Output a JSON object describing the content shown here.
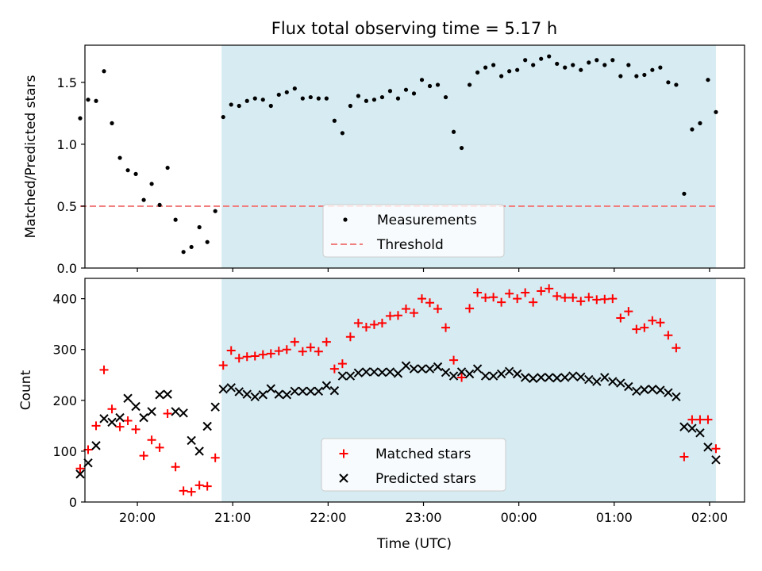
{
  "title": "Flux total observing time = 5.17 h",
  "xlabel": "Time (UTC)",
  "x_tick_labels": [
    "20:00",
    "21:00",
    "22:00",
    "23:00",
    "00:00",
    "01:00",
    "02:00"
  ],
  "colors": {
    "shade": "#add8e6",
    "threshold": "#f08080",
    "measurements": "#000000",
    "matched": "#ff0000",
    "predicted": "#000000"
  },
  "chart_data": [
    {
      "type": "scatter",
      "ylabel": "Matched/Predicted stars",
      "xlim": [
        "19:27",
        "02:22"
      ],
      "ylim": [
        0,
        1.8
      ],
      "y_ticks": [
        0.0,
        0.5,
        1.0,
        1.5
      ],
      "y_tick_labels": [
        "0.0",
        "0.5",
        "1.0",
        "1.5"
      ],
      "x_ticks": [
        "20:00",
        "21:00",
        "22:00",
        "23:00",
        "00:00",
        "01:00",
        "02:00"
      ],
      "shaded_interval": [
        "20:53",
        "02:04"
      ],
      "legend": {
        "placement": "lower-center",
        "entries": [
          "Measurements",
          "Threshold"
        ]
      },
      "threshold": {
        "name": "Threshold",
        "value": 0.5,
        "x_range": [
          "19:24",
          "02:04"
        ]
      },
      "series": [
        {
          "name": "Measurements",
          "points": [
            [
              "19:24",
              1.21
            ],
            [
              "19:29",
              1.36
            ],
            [
              "19:34",
              1.35
            ],
            [
              "19:39",
              1.59
            ],
            [
              "19:44",
              1.17
            ],
            [
              "19:49",
              0.89
            ],
            [
              "19:54",
              0.79
            ],
            [
              "19:59",
              0.76
            ],
            [
              "20:04",
              0.55
            ],
            [
              "20:09",
              0.68
            ],
            [
              "20:14",
              0.51
            ],
            [
              "20:19",
              0.81
            ],
            [
              "20:24",
              0.39
            ],
            [
              "20:29",
              0.13
            ],
            [
              "20:34",
              0.17
            ],
            [
              "20:39",
              0.33
            ],
            [
              "20:44",
              0.21
            ],
            [
              "20:49",
              0.46
            ],
            [
              "20:54",
              1.22
            ],
            [
              "20:59",
              1.32
            ],
            [
              "21:04",
              1.31
            ],
            [
              "21:09",
              1.35
            ],
            [
              "21:14",
              1.37
            ],
            [
              "21:19",
              1.36
            ],
            [
              "21:24",
              1.31
            ],
            [
              "21:29",
              1.4
            ],
            [
              "21:34",
              1.42
            ],
            [
              "21:39",
              1.45
            ],
            [
              "21:44",
              1.37
            ],
            [
              "21:49",
              1.38
            ],
            [
              "21:54",
              1.37
            ],
            [
              "21:59",
              1.37
            ],
            [
              "22:04",
              1.19
            ],
            [
              "22:09",
              1.09
            ],
            [
              "22:14",
              1.31
            ],
            [
              "22:19",
              1.39
            ],
            [
              "22:24",
              1.35
            ],
            [
              "22:29",
              1.36
            ],
            [
              "22:34",
              1.38
            ],
            [
              "22:39",
              1.43
            ],
            [
              "22:44",
              1.37
            ],
            [
              "22:49",
              1.44
            ],
            [
              "22:54",
              1.41
            ],
            [
              "22:59",
              1.52
            ],
            [
              "23:04",
              1.47
            ],
            [
              "23:09",
              1.48
            ],
            [
              "23:14",
              1.38
            ],
            [
              "23:19",
              1.1
            ],
            [
              "23:24",
              0.97
            ],
            [
              "23:29",
              1.48
            ],
            [
              "23:34",
              1.58
            ],
            [
              "23:39",
              1.62
            ],
            [
              "23:44",
              1.64
            ],
            [
              "23:49",
              1.55
            ],
            [
              "23:54",
              1.59
            ],
            [
              "23:59",
              1.6
            ],
            [
              "00:04",
              1.68
            ],
            [
              "00:09",
              1.64
            ],
            [
              "00:14",
              1.69
            ],
            [
              "00:19",
              1.71
            ],
            [
              "00:24",
              1.65
            ],
            [
              "00:29",
              1.62
            ],
            [
              "00:34",
              1.64
            ],
            [
              "00:39",
              1.6
            ],
            [
              "00:44",
              1.66
            ],
            [
              "00:49",
              1.68
            ],
            [
              "00:54",
              1.64
            ],
            [
              "00:59",
              1.68
            ],
            [
              "01:04",
              1.55
            ],
            [
              "01:09",
              1.64
            ],
            [
              "01:14",
              1.55
            ],
            [
              "01:19",
              1.56
            ],
            [
              "01:24",
              1.6
            ],
            [
              "01:29",
              1.62
            ],
            [
              "01:34",
              1.5
            ],
            [
              "01:39",
              1.48
            ],
            [
              "01:44",
              0.6
            ],
            [
              "01:49",
              1.12
            ],
            [
              "01:54",
              1.17
            ],
            [
              "01:59",
              1.52
            ],
            [
              "02:04",
              1.26
            ]
          ]
        }
      ]
    },
    {
      "type": "scatter",
      "ylabel": "Count",
      "xlim": [
        "19:27",
        "02:22"
      ],
      "ylim": [
        0,
        440
      ],
      "y_ticks": [
        0,
        100,
        200,
        300,
        400
      ],
      "y_tick_labels": [
        "0",
        "100",
        "200",
        "300",
        "400"
      ],
      "x_ticks": [
        "20:00",
        "21:00",
        "22:00",
        "23:00",
        "00:00",
        "01:00",
        "02:00"
      ],
      "shaded_interval": [
        "20:53",
        "02:04"
      ],
      "legend": {
        "placement": "lower-center",
        "entries": [
          "Matched stars",
          "Predicted stars"
        ]
      },
      "series": [
        {
          "name": "Matched stars",
          "marker": "plus",
          "points": [
            [
              "19:24",
              66
            ],
            [
              "19:29",
              103
            ],
            [
              "19:34",
              150
            ],
            [
              "19:39",
              260
            ],
            [
              "19:44",
              183
            ],
            [
              "19:49",
              148
            ],
            [
              "19:54",
              160
            ],
            [
              "19:59",
              143
            ],
            [
              "20:04",
              91
            ],
            [
              "20:09",
              122
            ],
            [
              "20:14",
              107
            ],
            [
              "20:19",
              174
            ],
            [
              "20:24",
              69
            ],
            [
              "20:29",
              22
            ],
            [
              "20:34",
              20
            ],
            [
              "20:39",
              33
            ],
            [
              "20:44",
              31
            ],
            [
              "20:49",
              87
            ],
            [
              "20:54",
              269
            ],
            [
              "20:59",
              298
            ],
            [
              "21:04",
              283
            ],
            [
              "21:09",
              286
            ],
            [
              "21:14",
              287
            ],
            [
              "21:19",
              290
            ],
            [
              "21:24",
              292
            ],
            [
              "21:29",
              297
            ],
            [
              "21:34",
              300
            ],
            [
              "21:39",
              315
            ],
            [
              "21:44",
              296
            ],
            [
              "21:49",
              304
            ],
            [
              "21:54",
              296
            ],
            [
              "21:59",
              315
            ],
            [
              "22:04",
              262
            ],
            [
              "22:09",
              272
            ],
            [
              "22:14",
              325
            ],
            [
              "22:19",
              352
            ],
            [
              "22:24",
              344
            ],
            [
              "22:29",
              349
            ],
            [
              "22:34",
              352
            ],
            [
              "22:39",
              366
            ],
            [
              "22:44",
              367
            ],
            [
              "22:49",
              380
            ],
            [
              "22:54",
              372
            ],
            [
              "22:59",
              400
            ],
            [
              "23:04",
              392
            ],
            [
              "23:09",
              380
            ],
            [
              "23:14",
              343
            ],
            [
              "23:19",
              279
            ],
            [
              "23:24",
              245
            ],
            [
              "23:29",
              381
            ],
            [
              "23:34",
              412
            ],
            [
              "23:39",
              402
            ],
            [
              "23:44",
              403
            ],
            [
              "23:49",
              393
            ],
            [
              "23:54",
              410
            ],
            [
              "23:59",
              400
            ],
            [
              "00:04",
              412
            ],
            [
              "00:09",
              393
            ],
            [
              "00:14",
              415
            ],
            [
              "00:19",
              420
            ],
            [
              "00:24",
              405
            ],
            [
              "00:29",
              402
            ],
            [
              "00:34",
              402
            ],
            [
              "00:39",
              395
            ],
            [
              "00:44",
              403
            ],
            [
              "00:49",
              398
            ],
            [
              "00:54",
              399
            ],
            [
              "00:59",
              400
            ],
            [
              "01:04",
              362
            ],
            [
              "01:09",
              375
            ],
            [
              "01:14",
              340
            ],
            [
              "01:19",
              343
            ],
            [
              "01:24",
              357
            ],
            [
              "01:29",
              353
            ],
            [
              "01:34",
              328
            ],
            [
              "01:39",
              303
            ],
            [
              "01:44",
              89
            ],
            [
              "01:49",
              162
            ],
            [
              "01:54",
              162
            ],
            [
              "01:59",
              162
            ],
            [
              "02:04",
              105
            ]
          ]
        },
        {
          "name": "Predicted stars",
          "marker": "x",
          "points": [
            [
              "19:24",
              55
            ],
            [
              "19:29",
              77
            ],
            [
              "19:34",
              111
            ],
            [
              "19:39",
              164
            ],
            [
              "19:44",
              157
            ],
            [
              "19:49",
              166
            ],
            [
              "19:54",
              204
            ],
            [
              "19:59",
              188
            ],
            [
              "20:04",
              166
            ],
            [
              "20:09",
              178
            ],
            [
              "20:14",
              211
            ],
            [
              "20:19",
              212
            ],
            [
              "20:24",
              178
            ],
            [
              "20:29",
              175
            ],
            [
              "20:34",
              121
            ],
            [
              "20:39",
              100
            ],
            [
              "20:44",
              149
            ],
            [
              "20:49",
              187
            ],
            [
              "20:54",
              222
            ],
            [
              "20:59",
              225
            ],
            [
              "21:04",
              217
            ],
            [
              "21:09",
              212
            ],
            [
              "21:14",
              207
            ],
            [
              "21:19",
              211
            ],
            [
              "21:24",
              223
            ],
            [
              "21:29",
              212
            ],
            [
              "21:34",
              211
            ],
            [
              "21:39",
              218
            ],
            [
              "21:44",
              218
            ],
            [
              "21:49",
              218
            ],
            [
              "21:54",
              218
            ],
            [
              "21:59",
              229
            ],
            [
              "22:04",
              219
            ],
            [
              "22:09",
              248
            ],
            [
              "22:14",
              248
            ],
            [
              "22:19",
              254
            ],
            [
              "22:24",
              256
            ],
            [
              "22:29",
              256
            ],
            [
              "22:34",
              255
            ],
            [
              "22:39",
              256
            ],
            [
              "22:44",
              253
            ],
            [
              "22:49",
              268
            ],
            [
              "22:54",
              262
            ],
            [
              "22:59",
              262
            ],
            [
              "23:04",
              262
            ],
            [
              "23:09",
              266
            ],
            [
              "23:14",
              255
            ],
            [
              "23:19",
              248
            ],
            [
              "23:24",
              256
            ],
            [
              "23:29",
              252
            ],
            [
              "23:34",
              262
            ],
            [
              "23:39",
              248
            ],
            [
              "23:44",
              248
            ],
            [
              "23:49",
              252
            ],
            [
              "23:54",
              257
            ],
            [
              "23:59",
              252
            ],
            [
              "00:04",
              245
            ],
            [
              "00:09",
              243
            ],
            [
              "00:14",
              245
            ],
            [
              "00:19",
              245
            ],
            [
              "00:24",
              244
            ],
            [
              "00:29",
              245
            ],
            [
              "00:34",
              248
            ],
            [
              "00:39",
              246
            ],
            [
              "00:44",
              241
            ],
            [
              "00:49",
              237
            ],
            [
              "00:54",
              245
            ],
            [
              "00:59",
              237
            ],
            [
              "01:04",
              234
            ],
            [
              "01:09",
              227
            ],
            [
              "01:14",
              218
            ],
            [
              "01:19",
              221
            ],
            [
              "01:24",
              222
            ],
            [
              "01:29",
              220
            ],
            [
              "01:34",
              215
            ],
            [
              "01:39",
              207
            ],
            [
              "01:44",
              148
            ],
            [
              "01:49",
              145
            ],
            [
              "01:54",
              136
            ],
            [
              "01:59",
              108
            ],
            [
              "02:04",
              83
            ]
          ]
        }
      ]
    }
  ]
}
